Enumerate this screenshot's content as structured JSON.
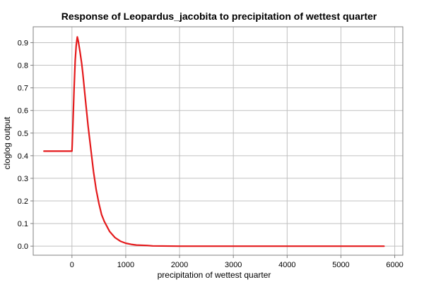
{
  "chart_data": {
    "type": "line",
    "title": "Response of Leopardus_jacobita to precipitation of wettest quarter",
    "xlabel": "precipitation of wettest quarter",
    "ylabel": "cloglog output",
    "xlim": [
      -720,
      6150
    ],
    "ylim": [
      -0.04,
      0.97
    ],
    "x_ticks": [
      0,
      1000,
      2000,
      3000,
      4000,
      5000,
      6000
    ],
    "y_ticks": [
      0.0,
      0.1,
      0.2,
      0.3,
      0.4,
      0.5,
      0.6,
      0.7,
      0.8,
      0.9
    ],
    "x_tick_labels": [
      "0",
      "1000",
      "2000",
      "3000",
      "4000",
      "5000",
      "6000"
    ],
    "y_tick_labels": [
      "0.0",
      "0.1",
      "0.2",
      "0.3",
      "0.4",
      "0.5",
      "0.6",
      "0.7",
      "0.8",
      "0.9"
    ],
    "grid": true,
    "series": [
      {
        "color": "#e41a1c",
        "x": [
          -520,
          -300,
          0,
          5,
          20,
          40,
          60,
          80,
          100,
          120,
          150,
          180,
          200,
          220,
          250,
          300,
          350,
          400,
          450,
          500,
          550,
          600,
          700,
          800,
          900,
          1000,
          1100,
          1200,
          1400,
          1500,
          2000,
          3000,
          4000,
          5000,
          5800
        ],
        "y": [
          0.42,
          0.42,
          0.42,
          0.45,
          0.55,
          0.7,
          0.82,
          0.89,
          0.925,
          0.905,
          0.86,
          0.81,
          0.77,
          0.72,
          0.65,
          0.53,
          0.43,
          0.33,
          0.25,
          0.19,
          0.14,
          0.11,
          0.065,
          0.038,
          0.022,
          0.013,
          0.008,
          0.005,
          0.003,
          0.001,
          0.0,
          0.0,
          0.0,
          0.0,
          0.0
        ]
      }
    ]
  }
}
